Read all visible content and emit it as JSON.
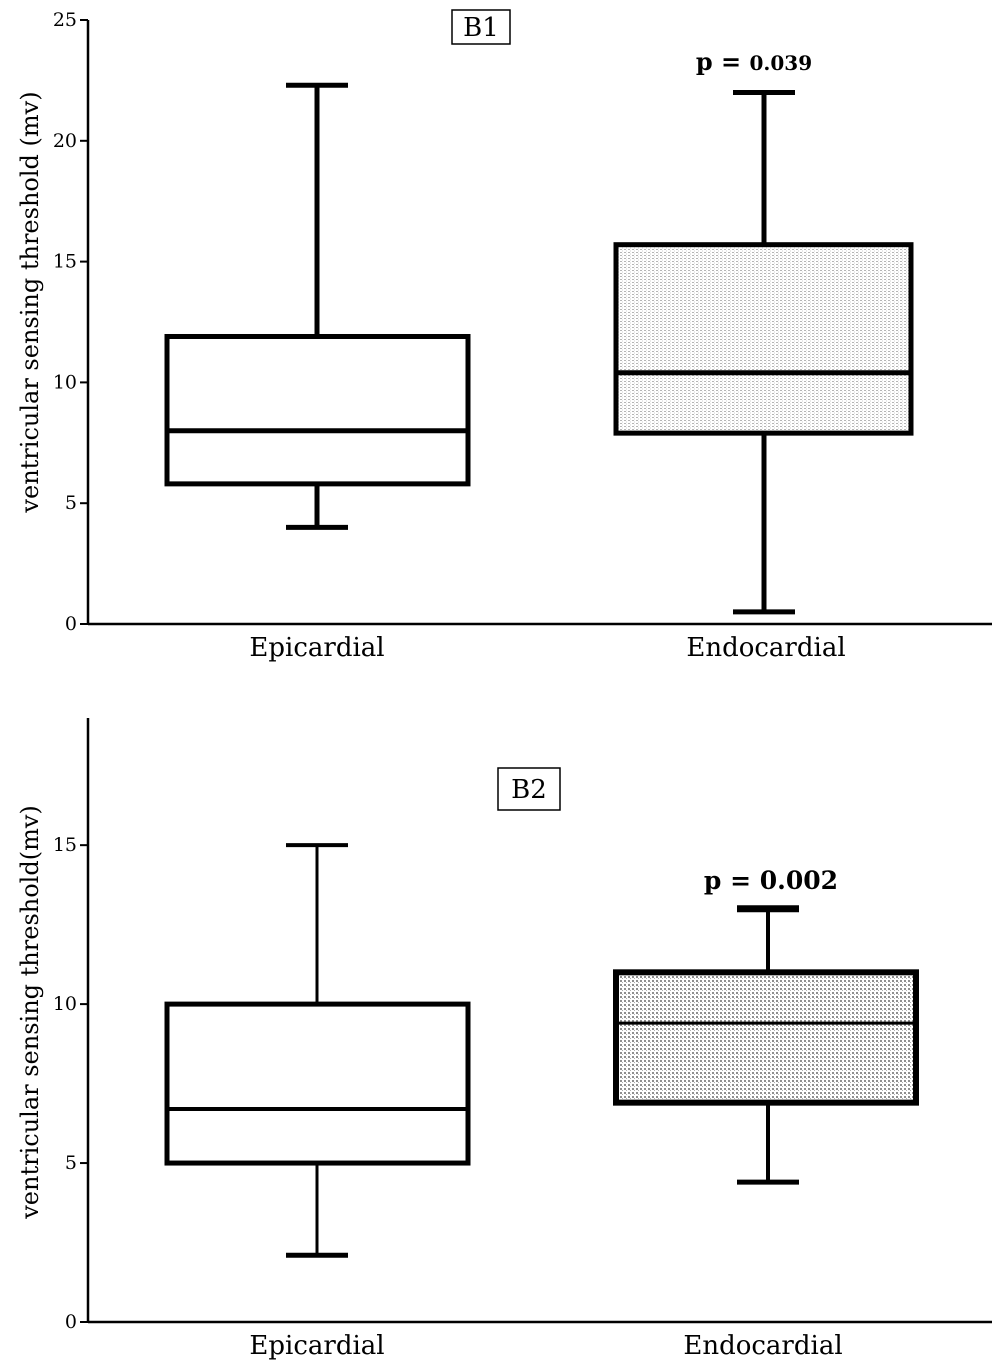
{
  "chart_data": [
    {
      "type": "box",
      "panel_label": "B1",
      "ylabel": "ventricular sensing threshold (mv)",
      "xlabel": "",
      "ylim": [
        0,
        25
      ],
      "yticks": [
        0,
        5,
        10,
        15,
        20,
        25
      ],
      "categories": [
        "Epicardial",
        "Endocardial"
      ],
      "boxes": [
        {
          "name": "Epicardial",
          "min": 4.0,
          "q1": 5.8,
          "median": 8.0,
          "q3": 11.9,
          "max": 22.3,
          "fill": "none"
        },
        {
          "name": "Endocardial",
          "min": 0.5,
          "q1": 7.9,
          "median": 10.4,
          "q3": 15.7,
          "max": 22.0,
          "fill": "dotted"
        }
      ],
      "annotation": {
        "prefix": "p = ",
        "value": "0.039",
        "category": "Endocardial"
      }
    },
    {
      "type": "box",
      "panel_label": "B2",
      "ylabel": "ventricular sensing threshold(mv)",
      "xlabel": "",
      "ylim": [
        0,
        19
      ],
      "yticks": [
        0,
        5,
        10,
        15
      ],
      "categories": [
        "Epicardial",
        "Endocardial"
      ],
      "boxes": [
        {
          "name": "Epicardial",
          "min": 2.1,
          "q1": 5.0,
          "median": 6.7,
          "q3": 10.0,
          "max": 15.0,
          "fill": "none"
        },
        {
          "name": "Endocardial",
          "min": 4.4,
          "q1": 6.9,
          "median": 9.4,
          "q3": 11.0,
          "max": 13.0,
          "fill": "dotted"
        }
      ],
      "annotation": {
        "prefix": "p = ",
        "value": "0.002",
        "category": "Endocardial"
      }
    }
  ],
  "colors": {
    "line": "#000000",
    "fill_dots": "#9a9a9a",
    "background": "#ffffff"
  }
}
